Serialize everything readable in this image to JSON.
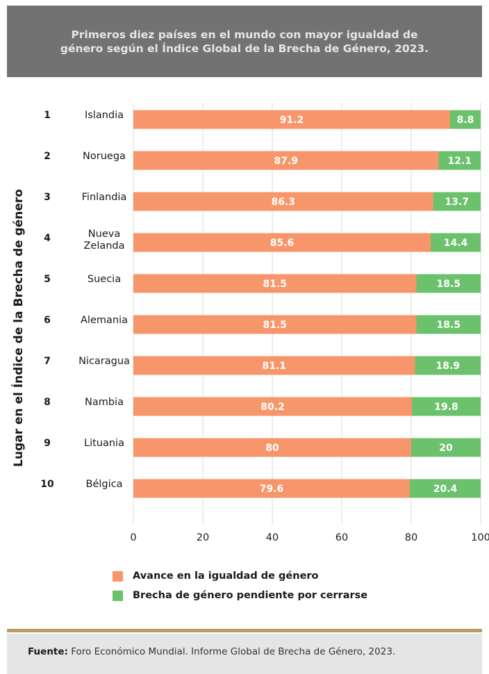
{
  "colors": {
    "advance": "#f7966b",
    "gap": "#6cc26c",
    "title_bg": "#727272"
  },
  "header": {
    "title": "Primeros diez países en el mundo con mayor igualdad de género según el Índice Global de la Brecha de Género, 2023."
  },
  "footer": {
    "source_label": "Fuente:",
    "source_text": " Foro Económico Mundial. Informe Global de Brecha de Género, 2023."
  },
  "chart_data": {
    "type": "bar",
    "orientation": "horizontal",
    "stacked": true,
    "title": "Primeros diez países en el mundo con mayor igualdad de género según el Índice Global de la Brecha de Género, 2023.",
    "ylabel": "Lugar en el Índice de la Brecha de género",
    "xlabel": "",
    "xlim": [
      0,
      100
    ],
    "xticks": [
      0,
      20,
      40,
      60,
      80,
      100
    ],
    "grid": true,
    "legend_position": "bottom",
    "ranks": [
      "1",
      "2",
      "3",
      "4",
      "5",
      "6",
      "7",
      "8",
      "9",
      "10"
    ],
    "categories": [
      "Islandia",
      "Noruega",
      "Finlandia",
      "Nueva Zelanda",
      "Suecia",
      "Alemania",
      "Nicaragua",
      "Nambia",
      "Lituania",
      "Bélgica"
    ],
    "series": [
      {
        "name": "Avance en la igualdad de género",
        "values": [
          91.2,
          87.9,
          86.3,
          85.6,
          81.5,
          81.5,
          81.1,
          80.2,
          80,
          79.6
        ]
      },
      {
        "name": "Brecha de género pendiente por cerrarse",
        "values": [
          8.8,
          12.1,
          13.7,
          14.4,
          18.5,
          18.5,
          18.9,
          19.8,
          20,
          20.4
        ]
      }
    ]
  }
}
